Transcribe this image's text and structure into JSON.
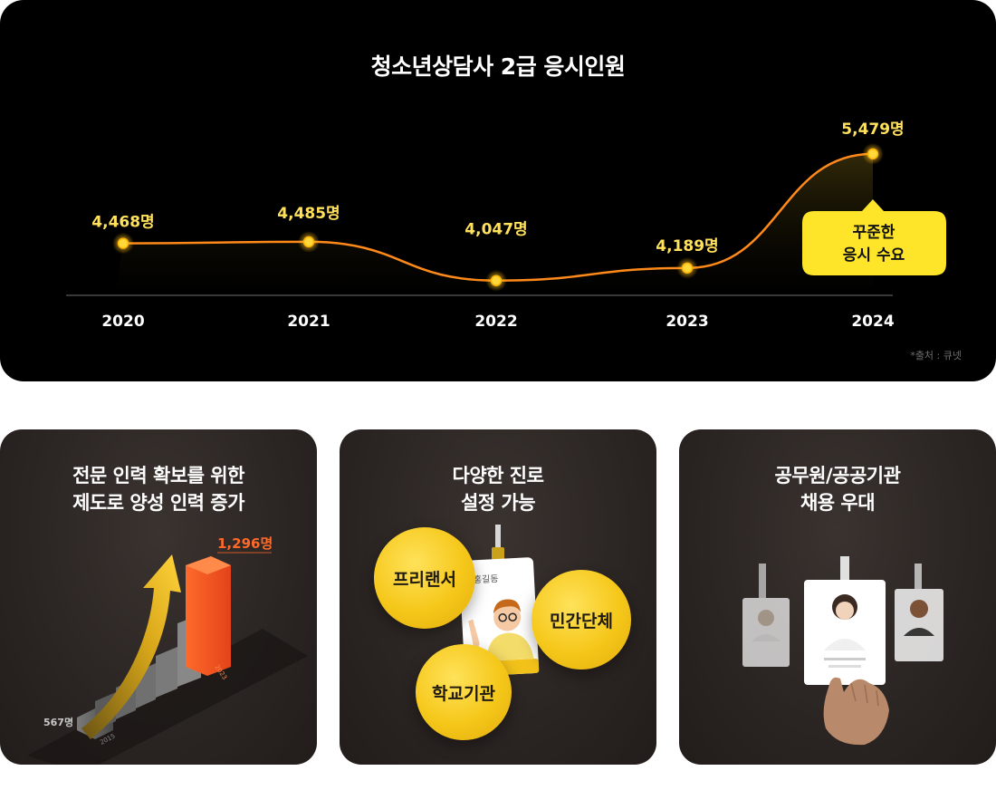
{
  "chart_data": {
    "type": "line",
    "title": "청소년상담사 2급 응시인원",
    "categories": [
      "2020",
      "2021",
      "2022",
      "2023",
      "2024"
    ],
    "values": [
      4468,
      4485,
      4047,
      4189,
      5479
    ],
    "data_labels": [
      "4,468명",
      "4,485명",
      "4,047명",
      "4,189명",
      "5,479명"
    ],
    "series": [
      {
        "values": [
          4468,
          4485,
          4047,
          4189,
          5479
        ]
      }
    ],
    "ylim": [
      3880,
      5580
    ],
    "grid": false,
    "line_color": "#ff8a1a",
    "marker_color": "#ffd93a",
    "label_color": "#ffe15c"
  },
  "callout": {
    "line1": "꾸준한",
    "line2": "응시 수요",
    "color": "#ffe52a"
  },
  "source_note": "*출처 : 큐넷",
  "cards": [
    {
      "title_line1": "전문 인력 확보를 위한",
      "title_line2": "제도로 양성 인력 증가",
      "start_value": "567명",
      "end_value": "1,296명",
      "start_year": "2015",
      "end_year": "2023",
      "accent": "#ff5a1f"
    },
    {
      "title_line1": "다양한 진로",
      "title_line2": "설정 가능",
      "badge_name": "홍길동",
      "bubbles": [
        "프리랜서",
        "민간단체",
        "학교기관"
      ]
    },
    {
      "title_line1": "공무원/공공기관",
      "title_line2": "채용 우대"
    }
  ],
  "colors": {
    "panel": "#000000",
    "card": "#2a2422"
  }
}
